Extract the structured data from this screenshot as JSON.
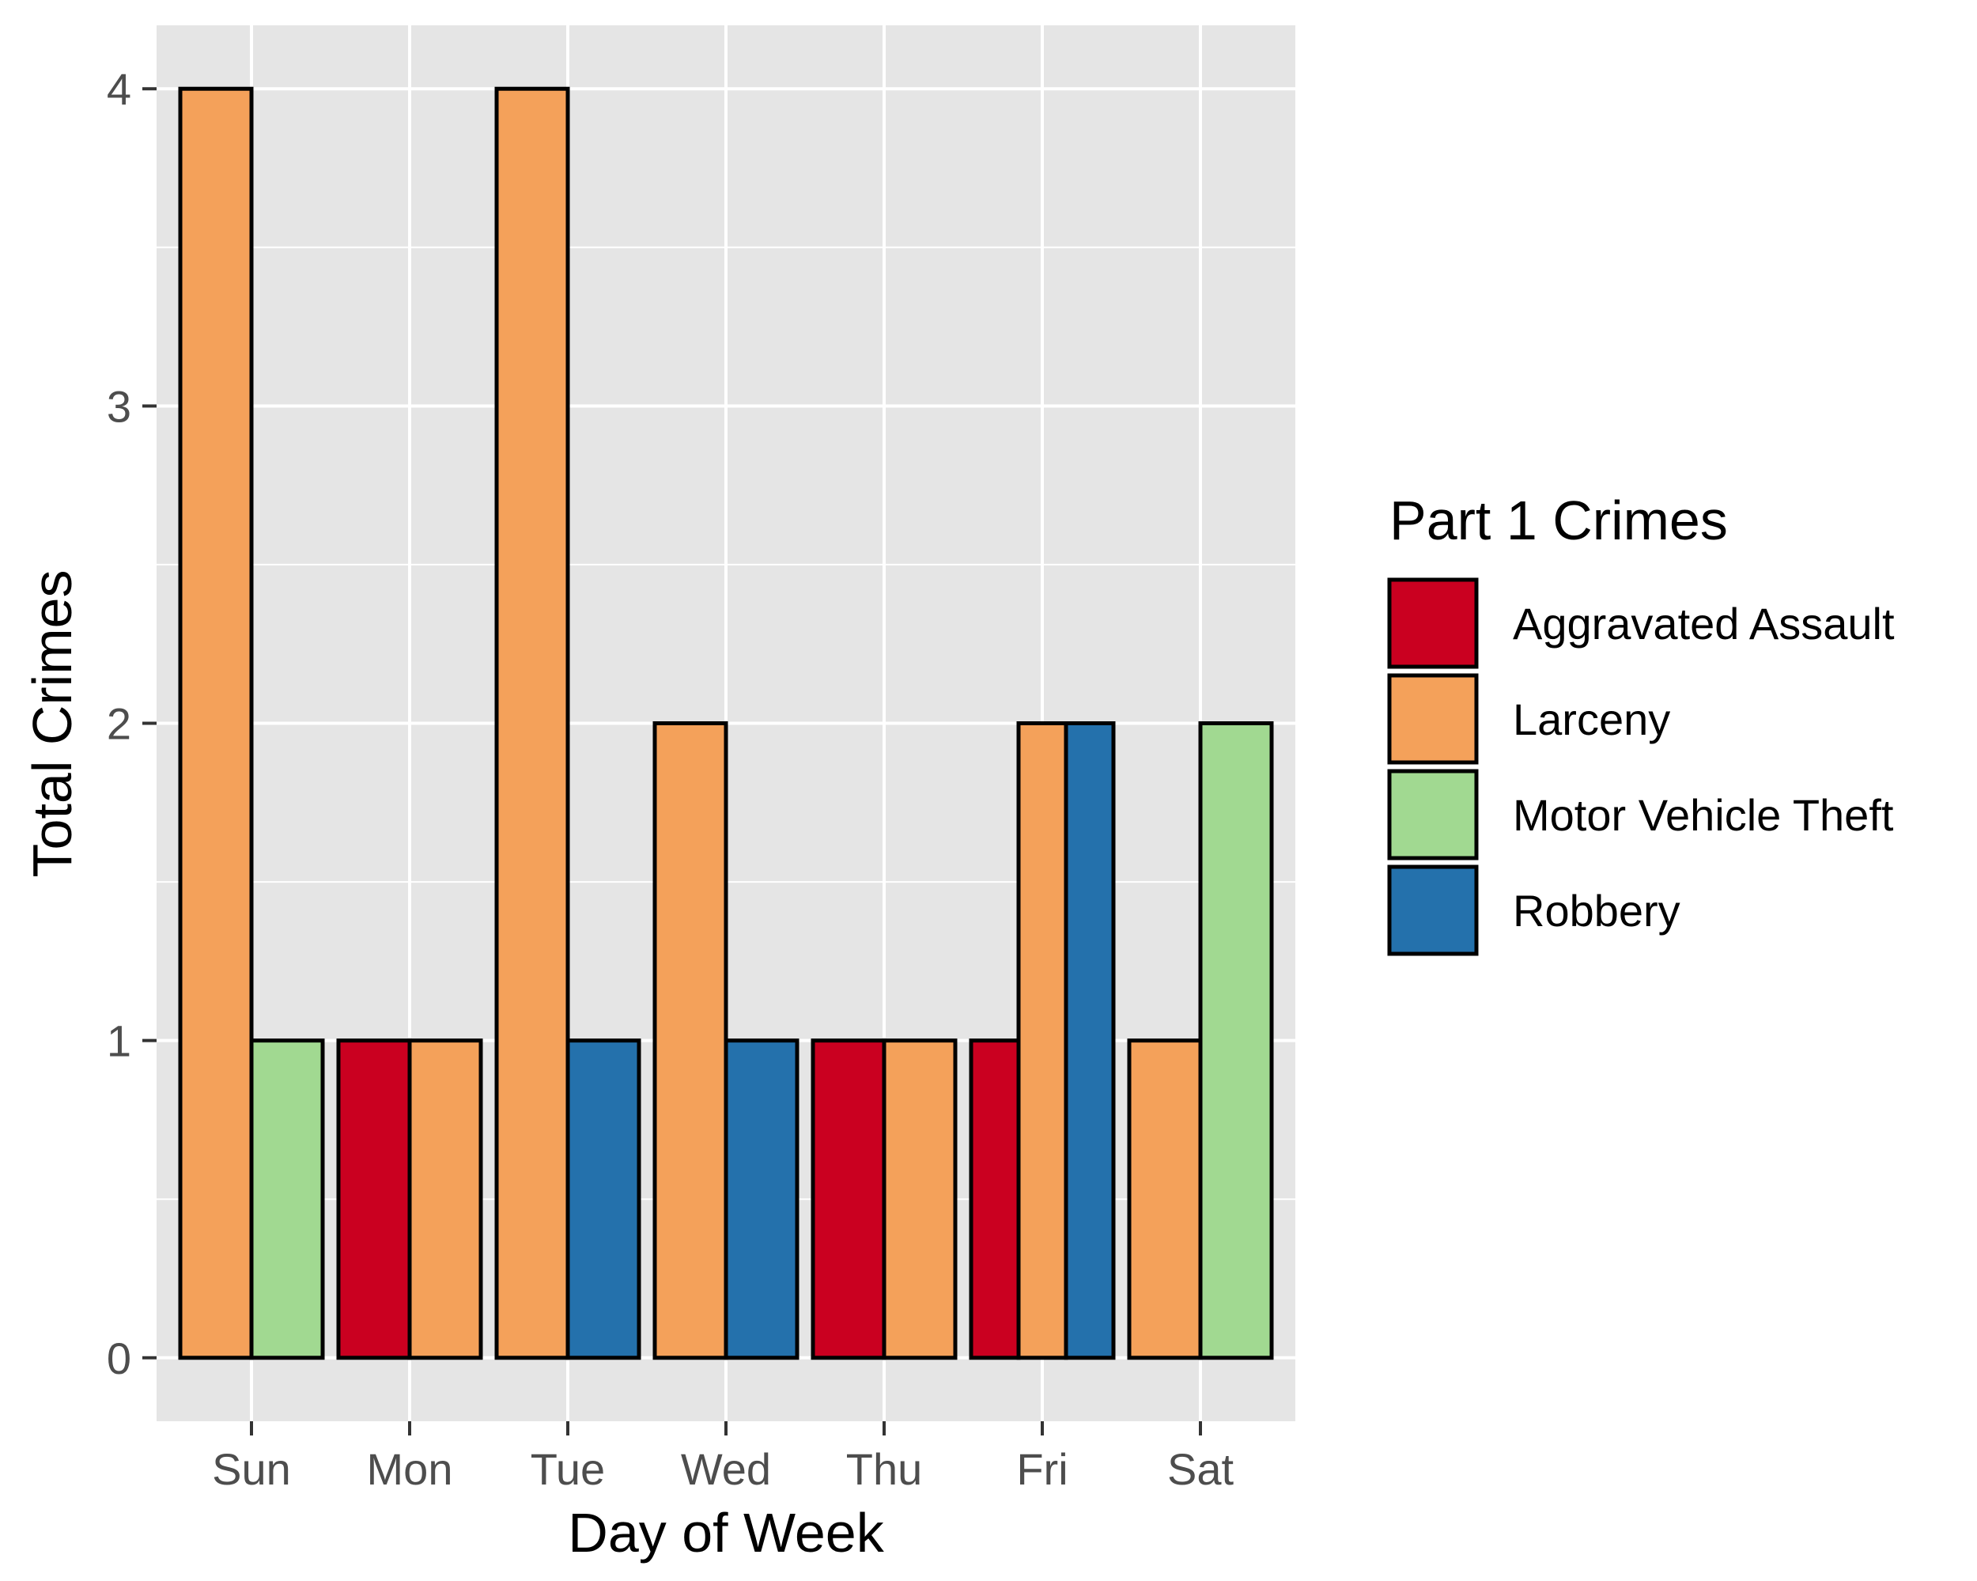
{
  "chart_data": {
    "type": "bar",
    "xlabel": "Day of Week",
    "ylabel": "Total Crimes",
    "ylim": [
      -0.2,
      4.2
    ],
    "yticks": [
      0,
      1,
      2,
      3,
      4
    ],
    "grid": true,
    "legend_title": "Part 1 Crimes",
    "legend_position": "right",
    "categories": [
      "Sun",
      "Mon",
      "Tue",
      "Wed",
      "Thu",
      "Fri",
      "Sat"
    ],
    "series": [
      {
        "name": "Aggravated Assault",
        "color": "#ca0020",
        "values": [
          null,
          1,
          null,
          null,
          1,
          1,
          null
        ]
      },
      {
        "name": "Larceny",
        "color": "#f4a15a",
        "values": [
          4,
          1,
          4,
          2,
          1,
          2,
          1
        ]
      },
      {
        "name": "Motor Vehicle Theft",
        "color": "#a1d991",
        "values": [
          1,
          null,
          null,
          null,
          null,
          null,
          2
        ]
      },
      {
        "name": "Robbery",
        "color": "#2471ac",
        "values": [
          null,
          null,
          1,
          1,
          null,
          2,
          null
        ]
      }
    ]
  }
}
